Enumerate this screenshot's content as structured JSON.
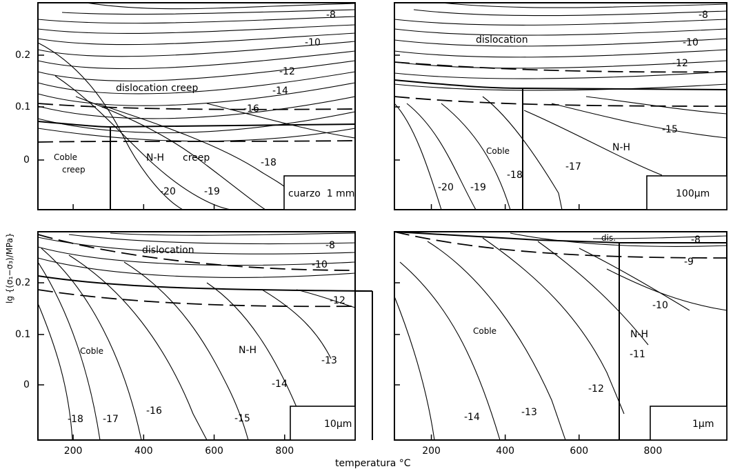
{
  "chart_data": {
    "type": "line",
    "panels": [
      {
        "grain_box_label": "cuarzo  1 mm",
        "y_ticks": [
          "0.2",
          "0.1",
          "0"
        ],
        "field_labels": [
          "dislocation creep",
          "Coble",
          "creep",
          "N-H",
          "creep"
        ],
        "contour_labels": [
          "-8",
          "-10",
          "-12",
          "-14",
          "-16",
          "-18",
          "-19",
          "-20"
        ]
      },
      {
        "grain_box_label": "100µm",
        "y_ticks": [],
        "field_labels": [
          "dislocation",
          "Coble",
          "N-H"
        ],
        "contour_labels": [
          "-8",
          "-10",
          "-12",
          "-15",
          "-17",
          "-18",
          "-19",
          "-20"
        ]
      },
      {
        "grain_box_label": "10µm",
        "y_ticks": [
          "0.2",
          "0.1",
          "0"
        ],
        "field_labels": [
          "dislocation",
          "Coble",
          "N-H"
        ],
        "contour_labels": [
          "-8",
          "-10",
          "-12",
          "-13",
          "-14",
          "-15",
          "-16",
          "-17",
          "-18"
        ]
      },
      {
        "grain_box_label": "1µm",
        "y_ticks": [],
        "field_labels": [
          "dis.",
          "Coble",
          "N-H"
        ],
        "contour_labels": [
          "-8",
          "-9",
          "-10",
          "-11",
          "-12",
          "-13",
          "-14"
        ]
      }
    ],
    "x_ticks": [
      "200",
      "400",
      "600",
      "800"
    ],
    "x_values": [
      200,
      400,
      600,
      800
    ],
    "xlim": [
      100,
      1000
    ],
    "xlabel": "temperatura °C",
    "ylabel": "lg {(σ₁−σ₃)/MPa}"
  }
}
